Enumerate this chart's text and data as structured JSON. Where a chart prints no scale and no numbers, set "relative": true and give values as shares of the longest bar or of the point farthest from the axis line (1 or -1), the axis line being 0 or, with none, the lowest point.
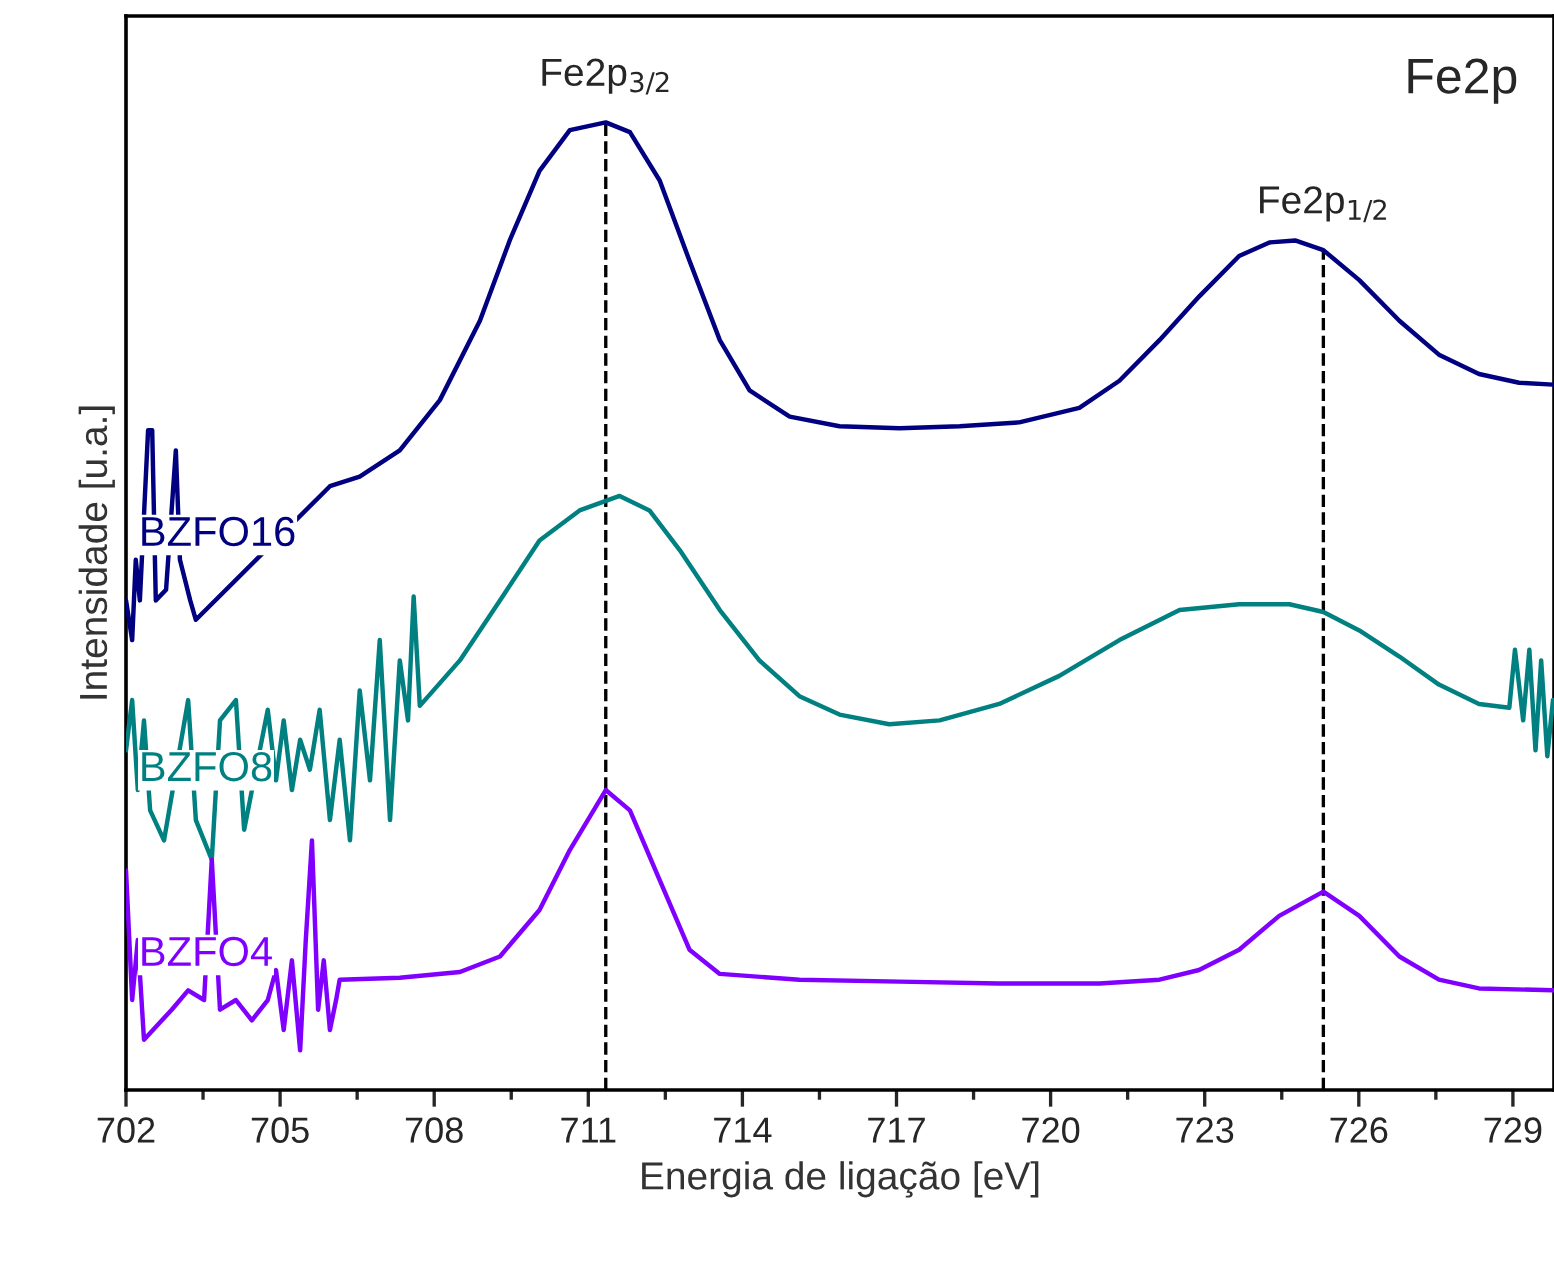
{
  "chart_data": {
    "type": "line",
    "relative": true,
    "xlabel": "Energia de ligação [eV]",
    "ylabel": "Intensidade [u.a.]",
    "xlim": [
      702,
      729.8
    ],
    "xticks": [
      702,
      {
        "value": 703.5,
        "label": null
      },
      705,
      {
        "value": 706.5,
        "label": null
      },
      708,
      {
        "value": 709.5,
        "label": null
      },
      711,
      {
        "value": 712.5,
        "label": null
      },
      714,
      {
        "value": 715.5,
        "label": null
      },
      717,
      {
        "value": 718.5,
        "label": null
      },
      720,
      {
        "value": 721.5,
        "label": null
      },
      723,
      {
        "value": 724.5,
        "label": null
      },
      726,
      {
        "value": 727.5,
        "label": null
      },
      729
    ],
    "grid": false,
    "legend": false,
    "marker": "none",
    "line_style": "solid",
    "series": [
      {
        "name": "BZFO16",
        "color": "#000080",
        "x": [
          702.0,
          702.12,
          702.19,
          702.27,
          702.35,
          702.43,
          702.51,
          702.58,
          702.66,
          702.78,
          702.89,
          702.97,
          703.05,
          703.13,
          703.25,
          703.36,
          703.44,
          703.56,
          703.67,
          705.97,
          706.55,
          707.33,
          708.11,
          708.89,
          709.47,
          710.05,
          710.64,
          711.34,
          711.81,
          712.39,
          712.97,
          713.56,
          714.14,
          714.92,
          715.89,
          717.06,
          718.23,
          719.39,
          720.56,
          721.34,
          722.12,
          722.89,
          723.67,
          724.26,
          724.76,
          725.31,
          726.01,
          726.79,
          727.56,
          728.34,
          729.12,
          729.78
        ],
        "values": [
          0.506,
          0.465,
          0.548,
          0.506,
          null,
          0.682,
          0.682,
          0.506,
          null,
          0.517,
          null,
          0.661,
          0.548,
          null,
          0.506,
          0.486,
          null,
          null,
          null,
          0.624,
          0.634,
          0.661,
          0.713,
          0.795,
          0.878,
          0.95,
          0.992,
          1.0,
          0.99,
          0.94,
          0.857,
          0.775,
          0.723,
          0.696,
          0.686,
          0.684,
          0.686,
          0.69,
          0.705,
          0.733,
          0.775,
          0.82,
          0.862,
          0.876,
          0.878,
          0.868,
          0.837,
          0.795,
          0.76,
          0.74,
          0.731,
          0.729
        ]
      },
      {
        "name": "BZFO8",
        "color": "#008080",
        "x": [
          702.0,
          702.12,
          702.23,
          702.35,
          702.47,
          702.58,
          702.74,
          702.89,
          703.05,
          703.21,
          703.36,
          703.52,
          703.67,
          703.83,
          703.98,
          704.14,
          704.3,
          704.45,
          704.61,
          704.76,
          704.92,
          705.07,
          705.23,
          705.39,
          705.58,
          705.77,
          705.97,
          706.16,
          706.36,
          706.55,
          706.75,
          706.94,
          707.14,
          707.33,
          707.49,
          707.6,
          707.72,
          708.5,
          709.28,
          710.05,
          710.83,
          711.61,
          712.19,
          712.78,
          713.56,
          714.33,
          715.11,
          715.89,
          716.86,
          717.84,
          719.0,
          720.17,
          721.34,
          722.51,
          723.67,
          724.65,
          725.31,
          726.01,
          726.79,
          727.56,
          728.34,
          728.93,
          729.04,
          729.2,
          729.32,
          729.44,
          729.55,
          729.67,
          729.78
        ],
        "values": [
          0.351,
          0.403,
          0.31,
          0.382,
          0.289,
          null,
          0.258,
          null,
          null,
          0.403,
          0.279,
          null,
          0.238,
          0.382,
          null,
          0.403,
          0.269,
          null,
          null,
          0.393,
          0.32,
          0.382,
          0.31,
          0.362,
          0.331,
          0.393,
          0.279,
          0.362,
          0.258,
          0.413,
          0.32,
          0.465,
          0.279,
          0.444,
          0.382,
          0.51,
          0.397,
          0.444,
          0.506,
          0.568,
          0.599,
          0.614,
          0.599,
          0.558,
          0.496,
          0.444,
          0.407,
          0.388,
          0.378,
          0.382,
          0.399,
          0.428,
          0.465,
          0.496,
          0.502,
          0.502,
          0.494,
          0.475,
          0.448,
          0.419,
          0.399,
          0.395,
          0.455,
          0.382,
          0.455,
          0.351,
          0.444,
          0.345,
          0.403
        ]
      },
      {
        "name": "BZFO4",
        "color": "#8000ff",
        "x": [
          702.0,
          702.12,
          702.23,
          702.35,
          702.47,
          702.58,
          702.74,
          702.89,
          703.05,
          703.21,
          703.36,
          703.52,
          703.67,
          703.83,
          703.98,
          704.14,
          704.3,
          704.45,
          704.61,
          704.76,
          704.92,
          705.07,
          705.23,
          705.39,
          705.5,
          705.62,
          705.74,
          705.85,
          705.97,
          706.09,
          706.16,
          707.33,
          708.5,
          709.28,
          710.05,
          710.64,
          711.34,
          711.81,
          712.39,
          712.97,
          713.56,
          715.11,
          717.06,
          719.0,
          720.95,
          722.12,
          722.89,
          723.67,
          724.45,
          725.31,
          726.01,
          726.79,
          727.56,
          728.34,
          729.78
        ],
        "values": [
          0.227,
          0.093,
          0.155,
          0.052,
          null,
          null,
          null,
          0.083,
          null,
          0.103,
          null,
          0.093,
          0.238,
          0.083,
          null,
          0.093,
          null,
          0.072,
          null,
          0.093,
          0.124,
          0.062,
          0.134,
          0.041,
          0.155,
          0.258,
          0.083,
          0.134,
          0.062,
          0.093,
          0.114,
          0.116,
          0.122,
          0.138,
          0.186,
          0.248,
          0.31,
          0.289,
          0.217,
          0.145,
          0.12,
          0.114,
          0.112,
          0.11,
          0.11,
          0.114,
          0.124,
          0.145,
          0.18,
          0.205,
          0.18,
          0.138,
          0.114,
          0.105,
          0.103
        ]
      }
    ],
    "ref_lines": [
      {
        "axis": "x",
        "value": 711.34,
        "label": null,
        "color": "#000000",
        "line_style": "dashed"
      },
      {
        "axis": "x",
        "value": 725.31,
        "label": null,
        "color": "#000000",
        "line_style": "dashed"
      }
    ],
    "annotations": [
      {
        "text": "Fe2p$_{3/2}$",
        "x": 711.34,
        "y": 1.0
      },
      {
        "text": "Fe2p$_{1/2}$",
        "x": 725.31,
        "y": 0.868
      },
      "Fe2p"
    ]
  }
}
